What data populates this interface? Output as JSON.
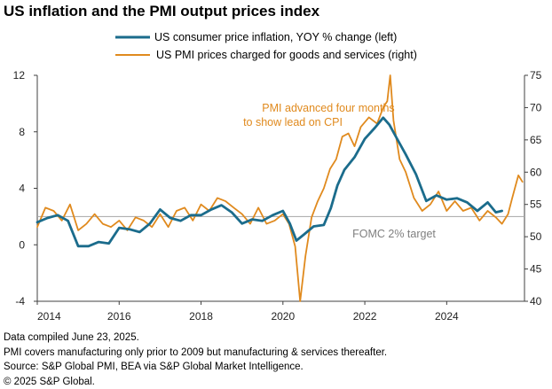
{
  "title": "US inflation and the PMI output prices index",
  "colors": {
    "cpi": "#1b6c8c",
    "pmi": "#e08a1e",
    "target": "#a6a6a6",
    "axis": "#404040"
  },
  "footer": [
    "Data compiled June 23, 2025.",
    "PMI covers manufacturing only prior to 2009 but manufacturing & services thereafter.",
    "Source: S&P Global PMI, BEA via S&P Global Market Intelligence.",
    "© 2025 S&P Global."
  ],
  "chart_data": {
    "type": "line",
    "xlim": [
      2014.0,
      2025.9
    ],
    "x_ticks": [
      "2014",
      "2016",
      "2018",
      "2020",
      "2022",
      "2024"
    ],
    "y_left": {
      "label": "",
      "ylim": [
        -4,
        12
      ],
      "ticks": [
        "-4",
        "0",
        "4",
        "8",
        "12"
      ]
    },
    "y_right": {
      "label": "",
      "ylim": [
        40,
        75
      ],
      "ticks": [
        "40",
        "45",
        "50",
        "55",
        "60",
        "65",
        "70",
        "75"
      ]
    },
    "series": [
      {
        "name": "US consumer price inflation, YOY % change (left)",
        "axis": "left",
        "x": [
          2014.0,
          2014.25,
          2014.5,
          2014.75,
          2015.0,
          2015.25,
          2015.5,
          2015.75,
          2016.0,
          2016.25,
          2016.5,
          2016.75,
          2017.0,
          2017.25,
          2017.5,
          2017.75,
          2018.0,
          2018.25,
          2018.5,
          2018.75,
          2019.0,
          2019.25,
          2019.5,
          2019.75,
          2020.0,
          2020.17,
          2020.33,
          2020.5,
          2020.75,
          2021.0,
          2021.17,
          2021.33,
          2021.5,
          2021.75,
          2022.0,
          2022.25,
          2022.45,
          2022.6,
          2022.75,
          2023.0,
          2023.25,
          2023.5,
          2023.75,
          2024.0,
          2024.25,
          2024.5,
          2024.75,
          2025.0,
          2025.2,
          2025.35
        ],
        "y": [
          1.6,
          1.9,
          2.1,
          1.7,
          -0.1,
          -0.1,
          0.2,
          0.1,
          1.2,
          1.1,
          0.9,
          1.5,
          2.5,
          1.9,
          1.7,
          2.1,
          2.1,
          2.5,
          2.8,
          2.3,
          1.5,
          1.8,
          1.7,
          2.1,
          2.4,
          1.5,
          0.3,
          0.7,
          1.3,
          1.4,
          2.6,
          4.2,
          5.3,
          6.2,
          7.5,
          8.3,
          9.0,
          8.5,
          7.7,
          6.4,
          5.0,
          3.1,
          3.5,
          3.2,
          3.3,
          3.0,
          2.4,
          3.0,
          2.3,
          2.4
        ]
      },
      {
        "name": "US PMI prices charged for goods and services (right)",
        "axis": "right",
        "x": [
          2014.0,
          2014.2,
          2014.4,
          2014.6,
          2014.8,
          2015.0,
          2015.2,
          2015.4,
          2015.6,
          2015.8,
          2016.0,
          2016.2,
          2016.4,
          2016.6,
          2016.8,
          2017.0,
          2017.2,
          2017.4,
          2017.6,
          2017.8,
          2018.0,
          2018.2,
          2018.4,
          2018.6,
          2018.8,
          2019.0,
          2019.2,
          2019.4,
          2019.6,
          2019.8,
          2020.0,
          2020.15,
          2020.3,
          2020.42,
          2020.55,
          2020.7,
          2020.85,
          2021.0,
          2021.15,
          2021.3,
          2021.45,
          2021.6,
          2021.75,
          2021.9,
          2022.1,
          2022.3,
          2022.45,
          2022.55,
          2022.62,
          2022.7,
          2022.85,
          2023.0,
          2023.2,
          2023.4,
          2023.6,
          2023.8,
          2024.0,
          2024.2,
          2024.4,
          2024.6,
          2024.8,
          2025.0,
          2025.2,
          2025.35,
          2025.5,
          2025.6,
          2025.75,
          2025.85
        ],
        "y": [
          51.5,
          54.5,
          54.0,
          52.5,
          55.0,
          51.0,
          52.0,
          53.5,
          52.0,
          51.5,
          52.5,
          51.0,
          53.0,
          52.5,
          51.5,
          53.5,
          51.5,
          54.0,
          54.5,
          52.5,
          55.0,
          54.0,
          56.0,
          55.5,
          54.5,
          53.5,
          52.0,
          54.5,
          52.0,
          52.5,
          53.5,
          52.0,
          48.5,
          40.0,
          47.0,
          53.0,
          55.5,
          57.5,
          60.5,
          62.0,
          65.5,
          66.0,
          64.0,
          67.0,
          68.5,
          67.5,
          70.0,
          71.0,
          75.0,
          68.0,
          62.0,
          60.0,
          56.0,
          54.0,
          55.0,
          57.0,
          54.0,
          55.5,
          54.0,
          54.5,
          52.5,
          54.0,
          53.0,
          52.0,
          53.5,
          56.0,
          59.5,
          58.5
        ]
      }
    ],
    "reference_line": {
      "value": 2,
      "axis": "left",
      "label": "FOMC 2% target"
    },
    "annotations": [
      "PMI advanced four months",
      "to show lead on CPI"
    ],
    "grid": false,
    "legend_placement": "top"
  }
}
